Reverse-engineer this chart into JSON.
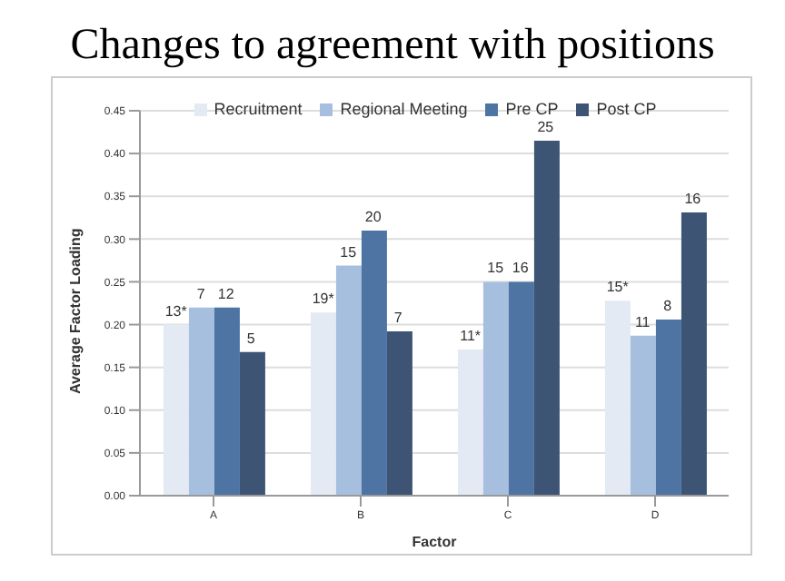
{
  "chart_data": {
    "type": "bar",
    "title": "Changes to agreement with positions",
    "xlabel": "Factor",
    "ylabel": "Average Factor Loading",
    "categories": [
      "A",
      "B",
      "C",
      "D"
    ],
    "series": [
      {
        "name": "Recruitment",
        "color": "#e3eaf4",
        "values": [
          0.2,
          0.214,
          0.171,
          0.228
        ]
      },
      {
        "name": "Regional Meeting",
        "color": "#a7bfdf",
        "values": [
          0.22,
          0.269,
          0.25,
          0.187
        ]
      },
      {
        "name": "Pre CP",
        "color": "#4e74a4",
        "values": [
          0.22,
          0.31,
          0.25,
          0.206
        ]
      },
      {
        "name": "Post CP",
        "color": "#3d5475",
        "values": [
          0.168,
          0.192,
          0.415,
          0.331
        ]
      }
    ],
    "annotations": [
      "13*",
      "19*",
      "11*",
      "15*",
      "7",
      "15",
      "15",
      "11",
      "12",
      "20",
      "16",
      "8",
      "5",
      "7",
      "25",
      "16"
    ],
    "ylim": [
      0,
      0.45
    ],
    "yticks": [
      {
        "value": 0,
        "label": "0.00"
      },
      {
        "value": 0.05,
        "label": "0.05"
      },
      {
        "value": 0.1,
        "label": "0.10"
      },
      {
        "value": 0.15,
        "label": "0.15"
      },
      {
        "value": 0.2,
        "label": "0.20"
      },
      {
        "value": 0.25,
        "label": "0.25"
      },
      {
        "value": 0.3,
        "label": "0.30"
      },
      {
        "value": 0.35,
        "label": "0.35"
      },
      {
        "value": 0.4,
        "label": "0.40"
      },
      {
        "value": 0.45,
        "label": "0.45"
      }
    ],
    "grid": "y",
    "legend": "top"
  }
}
